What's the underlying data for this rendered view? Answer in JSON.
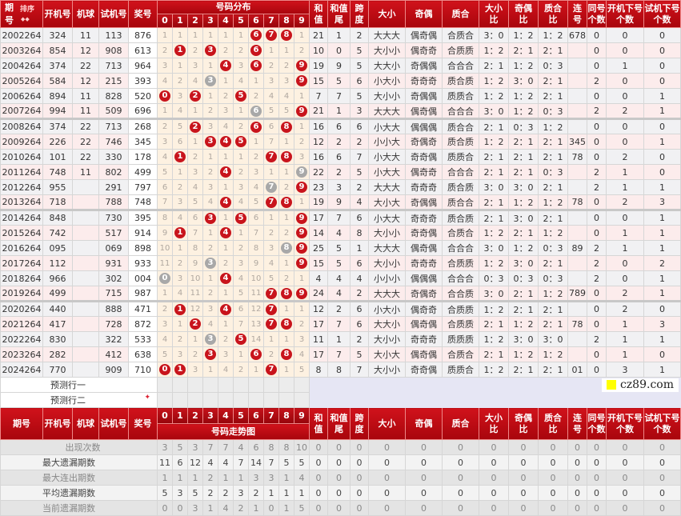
{
  "header": {
    "qihao_top": "期",
    "qihao_bottom": "号",
    "sort": "排序",
    "sort_arrows": "◆◆",
    "kaiji": "开机号",
    "jiqiu": "机球",
    "shiji": "试机号",
    "jiang": "奖号",
    "dist": "号码分布",
    "hezhi": [
      "和",
      "值"
    ],
    "hezhiwei": [
      "和值",
      "尾"
    ],
    "kuadu": [
      "跨",
      "度"
    ],
    "daxiao": "大小",
    "jiou": "奇偶",
    "zhihe": "质合",
    "dxb": [
      "大小",
      "比"
    ],
    "jib": [
      "奇偶",
      "比"
    ],
    "zhb": [
      "质合",
      "比"
    ],
    "lianhao": [
      "连",
      "号"
    ],
    "tonghao": [
      "同号",
      "个数"
    ],
    "kjxh": [
      "开机下号",
      "个数"
    ],
    "sjxh": [
      "试机下号",
      "个数"
    ]
  },
  "digits": [
    "0",
    "1",
    "2",
    "3",
    "4",
    "5",
    "6",
    "7",
    "8",
    "9"
  ],
  "watermark": "cz89.com",
  "colors": {
    "header_red": "#c00d15",
    "hit_ball": "#c8141c",
    "repeat_ball": "#a8a8a8",
    "dist_bg": "#fdf1e1"
  },
  "legend_note": "dist: number = miss count, H = red hit ball, G = gray hit ball",
  "rows": [
    {
      "q": "2002264",
      "kj": "324",
      "jq": "11",
      "sj": "113",
      "jh": "876",
      "dist": [
        1,
        1,
        1,
        1,
        1,
        1,
        "H",
        "H",
        "H",
        1
      ],
      "hz": "21",
      "hw": "1",
      "kd": "2",
      "dx": "大大大",
      "jo": "偶奇偶",
      "zh": "合质合",
      "dxb": "3：0",
      "job": "1：2",
      "zhb": "1：2",
      "lh": "678",
      "th": "0",
      "kx": "0",
      "sx": "0"
    },
    {
      "q": "2003264",
      "kj": "854",
      "jq": "12",
      "sj": "908",
      "jh": "613",
      "dist": [
        2,
        "H",
        2,
        "H",
        2,
        2,
        "H",
        1,
        1,
        2
      ],
      "hz": "10",
      "hw": "0",
      "kd": "5",
      "dx": "大小小",
      "jo": "偶奇奇",
      "zh": "合质质",
      "dxb": "1：2",
      "job": "2：1",
      "zhb": "2：1",
      "lh": "",
      "th": "0",
      "kx": "0",
      "sx": "0"
    },
    {
      "q": "2004264",
      "kj": "374",
      "jq": "22",
      "sj": "713",
      "jh": "964",
      "dist": [
        3,
        1,
        3,
        1,
        "H",
        3,
        "H",
        2,
        2,
        "H"
      ],
      "hz": "19",
      "hw": "9",
      "kd": "5",
      "dx": "大大小",
      "jo": "奇偶偶",
      "zh": "合合合",
      "dxb": "2：1",
      "job": "1：2",
      "zhb": "0：3",
      "lh": "",
      "th": "0",
      "kx": "1",
      "sx": "0"
    },
    {
      "q": "2005264",
      "kj": "584",
      "jq": "12",
      "sj": "215",
      "jh": "393",
      "dist": [
        4,
        2,
        4,
        "G",
        1,
        4,
        1,
        3,
        3,
        "H"
      ],
      "hz": "15",
      "hw": "5",
      "kd": "6",
      "dx": "小大小",
      "jo": "奇奇奇",
      "zh": "质合质",
      "dxb": "1：2",
      "job": "3：0",
      "zhb": "2：1",
      "lh": "",
      "th": "2",
      "kx": "0",
      "sx": "0"
    },
    {
      "q": "2006264",
      "kj": "894",
      "jq": "11",
      "sj": "828",
      "jh": "520",
      "dist": [
        "H",
        3,
        "H",
        1,
        2,
        "H",
        2,
        4,
        4,
        1
      ],
      "hz": "7",
      "hw": "7",
      "kd": "5",
      "dx": "大小小",
      "jo": "奇偶偶",
      "zh": "质质合",
      "dxb": "1：2",
      "job": "1：2",
      "zhb": "2：1",
      "lh": "",
      "th": "0",
      "kx": "0",
      "sx": "1"
    },
    {
      "q": "2007264",
      "kj": "994",
      "jq": "11",
      "sj": "509",
      "jh": "696",
      "dist": [
        1,
        4,
        1,
        2,
        3,
        1,
        "G",
        5,
        5,
        "H"
      ],
      "hz": "21",
      "hw": "1",
      "kd": "3",
      "dx": "大大大",
      "jo": "偶奇偶",
      "zh": "合合合",
      "dxb": "3：0",
      "job": "1：2",
      "zhb": "0：3",
      "lh": "",
      "th": "2",
      "kx": "2",
      "sx": "1"
    },
    {
      "q": "2008264",
      "kj": "374",
      "jq": "22",
      "sj": "713",
      "jh": "268",
      "dist": [
        2,
        5,
        "H",
        3,
        4,
        2,
        "H",
        6,
        "H",
        1
      ],
      "hz": "16",
      "hw": "6",
      "kd": "6",
      "dx": "小大大",
      "jo": "偶偶偶",
      "zh": "质合合",
      "dxb": "2：1",
      "job": "0：3",
      "zhb": "1：2",
      "lh": "",
      "th": "0",
      "kx": "0",
      "sx": "0"
    },
    {
      "q": "2009264",
      "kj": "226",
      "jq": "22",
      "sj": "746",
      "jh": "345",
      "dist": [
        3,
        6,
        1,
        "H",
        "H",
        "H",
        1,
        7,
        1,
        2
      ],
      "hz": "12",
      "hw": "2",
      "kd": "2",
      "dx": "小小大",
      "jo": "奇偶奇",
      "zh": "质合质",
      "dxb": "1：2",
      "job": "2：1",
      "zhb": "2：1",
      "lh": "345",
      "th": "0",
      "kx": "0",
      "sx": "1"
    },
    {
      "q": "2010264",
      "kj": "101",
      "jq": "22",
      "sj": "330",
      "jh": "178",
      "dist": [
        4,
        "H",
        2,
        1,
        1,
        1,
        2,
        "H",
        "H",
        3
      ],
      "hz": "16",
      "hw": "6",
      "kd": "7",
      "dx": "小大大",
      "jo": "奇奇偶",
      "zh": "质质合",
      "dxb": "2：1",
      "job": "2：1",
      "zhb": "2：1",
      "lh": "78",
      "th": "0",
      "kx": "2",
      "sx": "0"
    },
    {
      "q": "2011264",
      "kj": "748",
      "jq": "11",
      "sj": "802",
      "jh": "499",
      "dist": [
        5,
        1,
        3,
        2,
        "H",
        2,
        3,
        1,
        1,
        "G"
      ],
      "hz": "22",
      "hw": "2",
      "kd": "5",
      "dx": "小大大",
      "jo": "偶奇奇",
      "zh": "合合合",
      "dxb": "2：1",
      "job": "2：1",
      "zhb": "0：3",
      "lh": "",
      "th": "2",
      "kx": "1",
      "sx": "0"
    },
    {
      "q": "2012264",
      "kj": "955",
      "jq": "",
      "sj": "291",
      "jh": "797",
      "dist": [
        6,
        2,
        4,
        3,
        1,
        3,
        4,
        "G",
        2,
        "H"
      ],
      "hz": "23",
      "hw": "3",
      "kd": "2",
      "dx": "大大大",
      "jo": "奇奇奇",
      "zh": "质合质",
      "dxb": "3：0",
      "job": "3：0",
      "zhb": "2：1",
      "lh": "",
      "th": "2",
      "kx": "1",
      "sx": "1"
    },
    {
      "q": "2013264",
      "kj": "718",
      "jq": "",
      "sj": "788",
      "jh": "748",
      "dist": [
        7,
        3,
        5,
        4,
        "H",
        4,
        5,
        "H",
        "H",
        1
      ],
      "hz": "19",
      "hw": "9",
      "kd": "4",
      "dx": "大小大",
      "jo": "奇偶偶",
      "zh": "质合合",
      "dxb": "2：1",
      "job": "1：2",
      "zhb": "1：2",
      "lh": "78",
      "th": "0",
      "kx": "2",
      "sx": "3"
    },
    {
      "q": "2014264",
      "kj": "848",
      "jq": "",
      "sj": "730",
      "jh": "395",
      "dist": [
        8,
        4,
        6,
        "H",
        1,
        "H",
        6,
        1,
        1,
        "H"
      ],
      "hz": "17",
      "hw": "7",
      "kd": "6",
      "dx": "小大大",
      "jo": "奇奇奇",
      "zh": "质合质",
      "dxb": "2：1",
      "job": "3：0",
      "zhb": "2：1",
      "lh": "",
      "th": "0",
      "kx": "0",
      "sx": "1"
    },
    {
      "q": "2015264",
      "kj": "742",
      "jq": "",
      "sj": "517",
      "jh": "914",
      "dist": [
        9,
        "H",
        7,
        1,
        "H",
        1,
        7,
        2,
        2,
        "H"
      ],
      "hz": "14",
      "hw": "4",
      "kd": "8",
      "dx": "大小小",
      "jo": "奇奇偶",
      "zh": "合质合",
      "dxb": "1：2",
      "job": "2：1",
      "zhb": "1：2",
      "lh": "",
      "th": "0",
      "kx": "1",
      "sx": "1"
    },
    {
      "q": "2016264",
      "kj": "095",
      "jq": "",
      "sj": "069",
      "jh": "898",
      "dist": [
        10,
        1,
        8,
        2,
        1,
        2,
        8,
        3,
        "G",
        "H"
      ],
      "hz": "25",
      "hw": "5",
      "kd": "1",
      "dx": "大大大",
      "jo": "偶奇偶",
      "zh": "合合合",
      "dxb": "3：0",
      "job": "1：2",
      "zhb": "0：3",
      "lh": "89",
      "th": "2",
      "kx": "1",
      "sx": "1"
    },
    {
      "q": "2017264",
      "kj": "112",
      "jq": "",
      "sj": "931",
      "jh": "933",
      "dist": [
        11,
        2,
        9,
        "G",
        2,
        3,
        9,
        4,
        1,
        "H"
      ],
      "hz": "15",
      "hw": "5",
      "kd": "6",
      "dx": "大小小",
      "jo": "奇奇奇",
      "zh": "合质质",
      "dxb": "1：2",
      "job": "3：0",
      "zhb": "2：1",
      "lh": "",
      "th": "2",
      "kx": "0",
      "sx": "2"
    },
    {
      "q": "2018264",
      "kj": "966",
      "jq": "",
      "sj": "302",
      "jh": "004",
      "dist": [
        "G",
        3,
        10,
        1,
        "H",
        4,
        10,
        5,
        2,
        1
      ],
      "hz": "4",
      "hw": "4",
      "kd": "4",
      "dx": "小小小",
      "jo": "偶偶偶",
      "zh": "合合合",
      "dxb": "0：3",
      "job": "0：3",
      "zhb": "0：3",
      "lh": "",
      "th": "2",
      "kx": "0",
      "sx": "1"
    },
    {
      "q": "2019264",
      "kj": "499",
      "jq": "",
      "sj": "715",
      "jh": "987",
      "dist": [
        1,
        4,
        11,
        2,
        1,
        5,
        11,
        "H",
        "H",
        "H"
      ],
      "hz": "24",
      "hw": "4",
      "kd": "2",
      "dx": "大大大",
      "jo": "奇偶奇",
      "zh": "合合质",
      "dxb": "3：0",
      "job": "2：1",
      "zhb": "1：2",
      "lh": "789",
      "th": "0",
      "kx": "2",
      "sx": "1"
    },
    {
      "q": "2020264",
      "kj": "440",
      "jq": "",
      "sj": "888",
      "jh": "471",
      "dist": [
        2,
        "H",
        12,
        3,
        "H",
        6,
        12,
        "H",
        1,
        1
      ],
      "hz": "12",
      "hw": "2",
      "kd": "6",
      "dx": "小大小",
      "jo": "偶奇奇",
      "zh": "合质质",
      "dxb": "1：2",
      "job": "2：1",
      "zhb": "2：1",
      "lh": "",
      "th": "0",
      "kx": "2",
      "sx": "0"
    },
    {
      "q": "2021264",
      "kj": "417",
      "jq": "",
      "sj": "728",
      "jh": "872",
      "dist": [
        3,
        1,
        "H",
        4,
        1,
        7,
        13,
        "H",
        "H",
        2
      ],
      "hz": "17",
      "hw": "7",
      "kd": "6",
      "dx": "大大小",
      "jo": "偶奇偶",
      "zh": "合质质",
      "dxb": "2：1",
      "job": "1：2",
      "zhb": "2：1",
      "lh": "78",
      "th": "0",
      "kx": "1",
      "sx": "3"
    },
    {
      "q": "2022264",
      "kj": "830",
      "jq": "",
      "sj": "322",
      "jh": "533",
      "dist": [
        4,
        2,
        1,
        "G",
        2,
        "H",
        14,
        1,
        1,
        3
      ],
      "hz": "11",
      "hw": "1",
      "kd": "2",
      "dx": "大小小",
      "jo": "奇奇奇",
      "zh": "质质质",
      "dxb": "1：2",
      "job": "3：0",
      "zhb": "3：0",
      "lh": "",
      "th": "2",
      "kx": "1",
      "sx": "1"
    },
    {
      "q": "2023264",
      "kj": "282",
      "jq": "",
      "sj": "412",
      "jh": "638",
      "dist": [
        5,
        3,
        2,
        "H",
        3,
        1,
        "H",
        2,
        "H",
        4
      ],
      "hz": "17",
      "hw": "7",
      "kd": "5",
      "dx": "大小大",
      "jo": "偶奇偶",
      "zh": "合质合",
      "dxb": "2：1",
      "job": "1：2",
      "zhb": "1：2",
      "lh": "",
      "th": "0",
      "kx": "1",
      "sx": "0"
    },
    {
      "q": "2024264",
      "kj": "770",
      "jq": "",
      "sj": "909",
      "jh": "710",
      "dist": [
        "H",
        "H",
        3,
        1,
        4,
        2,
        1,
        "H",
        1,
        5
      ],
      "hz": "8",
      "hw": "8",
      "kd": "7",
      "dx": "大小小",
      "jo": "奇奇偶",
      "zh": "质质合",
      "dxb": "1：2",
      "job": "2：1",
      "zhb": "2：1",
      "lh": "01",
      "th": "0",
      "kx": "3",
      "sx": "1"
    }
  ],
  "forecast": [
    "预测行一",
    "预测行二"
  ],
  "forecast_arrow": "✦",
  "footer_header": {
    "qihao": "期号",
    "trend": "号码走势图"
  },
  "stats": [
    {
      "label": "出现次数",
      "digits": [
        3,
        5,
        3,
        7,
        7,
        4,
        6,
        8,
        8,
        10
      ],
      "rest": [
        0,
        0,
        0,
        0,
        0,
        0,
        0,
        0,
        0,
        0,
        0,
        0,
        0,
        0
      ]
    },
    {
      "label": "最大遗漏期数",
      "digits": [
        11,
        6,
        12,
        4,
        4,
        7,
        14,
        7,
        5,
        5
      ],
      "rest": [
        0,
        0,
        0,
        0,
        0,
        0,
        0,
        0,
        0,
        0,
        0,
        0,
        0,
        0
      ]
    },
    {
      "label": "最大连出期数",
      "digits": [
        1,
        1,
        1,
        2,
        1,
        1,
        3,
        3,
        1,
        4
      ],
      "rest": [
        0,
        0,
        0,
        0,
        0,
        0,
        0,
        0,
        0,
        0,
        0,
        0,
        0,
        0
      ]
    },
    {
      "label": "平均遗漏期数",
      "digits": [
        5,
        3,
        5,
        2,
        2,
        3,
        2,
        1,
        1,
        1
      ],
      "rest": [
        0,
        0,
        0,
        0,
        0,
        0,
        0,
        0,
        0,
        0,
        0,
        0,
        0,
        0
      ]
    },
    {
      "label": "当前遗漏期数",
      "digits": [
        0,
        0,
        3,
        1,
        4,
        2,
        1,
        0,
        1,
        5
      ],
      "rest": [
        0,
        0,
        0,
        0,
        0,
        0,
        0,
        0,
        0,
        0,
        0,
        0,
        0,
        0
      ]
    }
  ]
}
